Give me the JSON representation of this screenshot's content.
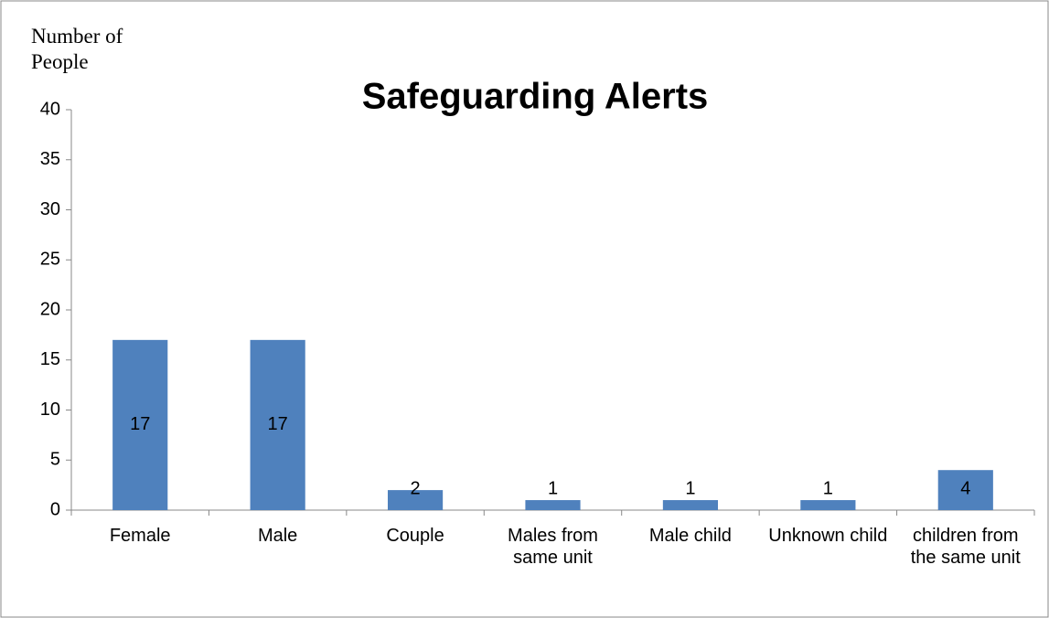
{
  "chart_data": {
    "type": "bar",
    "title": "Safeguarding Alerts",
    "y_label": "Number of People",
    "categories": [
      "Female",
      "Male",
      "Couple",
      "Males from same unit",
      "Male child",
      "Unknown child",
      "children from the same unit"
    ],
    "values": [
      17,
      17,
      2,
      1,
      1,
      1,
      4
    ],
    "color": "#4f81bd",
    "ylim": [
      0,
      40
    ],
    "yticks": [
      0,
      5,
      10,
      15,
      20,
      25,
      30,
      35,
      40
    ],
    "grid": false,
    "data_labels": true
  }
}
